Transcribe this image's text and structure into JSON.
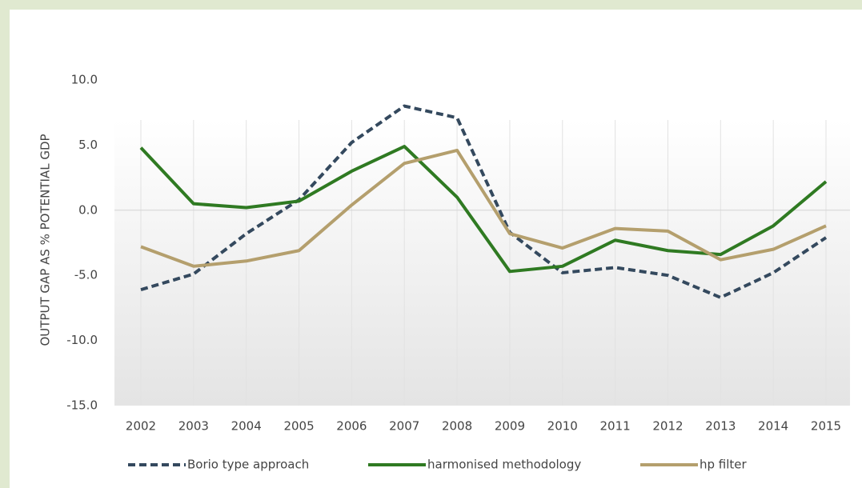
{
  "chart_data": {
    "type": "line",
    "y_label": "OUTPUT GAP AS % POTENTIAL GDP",
    "categories": [
      "2002",
      "2003",
      "2004",
      "2005",
      "2006",
      "2007",
      "2008",
      "2009",
      "2010",
      "2011",
      "2012",
      "2013",
      "2014",
      "2015"
    ],
    "series": [
      {
        "name": "Borio type approach",
        "color": "#34495e",
        "dashed": true,
        "values": [
          -6.1,
          -4.9,
          -1.8,
          0.8,
          5.2,
          8.0,
          7.1,
          -1.7,
          -4.8,
          -4.4,
          -5.0,
          -6.7,
          -4.8,
          -2.1
        ]
      },
      {
        "name": "harmonised methodology",
        "color": "#2f7a22",
        "dashed": false,
        "values": [
          4.8,
          0.5,
          0.2,
          0.7,
          3.0,
          4.9,
          1.0,
          -4.7,
          -4.3,
          -2.3,
          -3.1,
          -3.4,
          -1.2,
          2.2
        ]
      },
      {
        "name": "hp filter",
        "color": "#b49f6d",
        "dashed": false,
        "values": [
          -2.8,
          -4.3,
          -3.9,
          -3.1,
          0.4,
          3.6,
          4.6,
          -1.8,
          -2.9,
          -1.4,
          -1.6,
          -3.8,
          -3.0,
          -1.2
        ]
      }
    ],
    "ylim": [
      -15,
      10
    ],
    "yticks": [
      {
        "value": -15,
        "label": "-15.0"
      },
      {
        "value": -10,
        "label": "-10.0"
      },
      {
        "value": -5,
        "label": "-5.0"
      },
      {
        "value": 0,
        "label": "0.0"
      },
      {
        "value": 5,
        "label": "5.0"
      },
      {
        "value": 10,
        "label": "10.0"
      }
    ],
    "grid": true
  }
}
